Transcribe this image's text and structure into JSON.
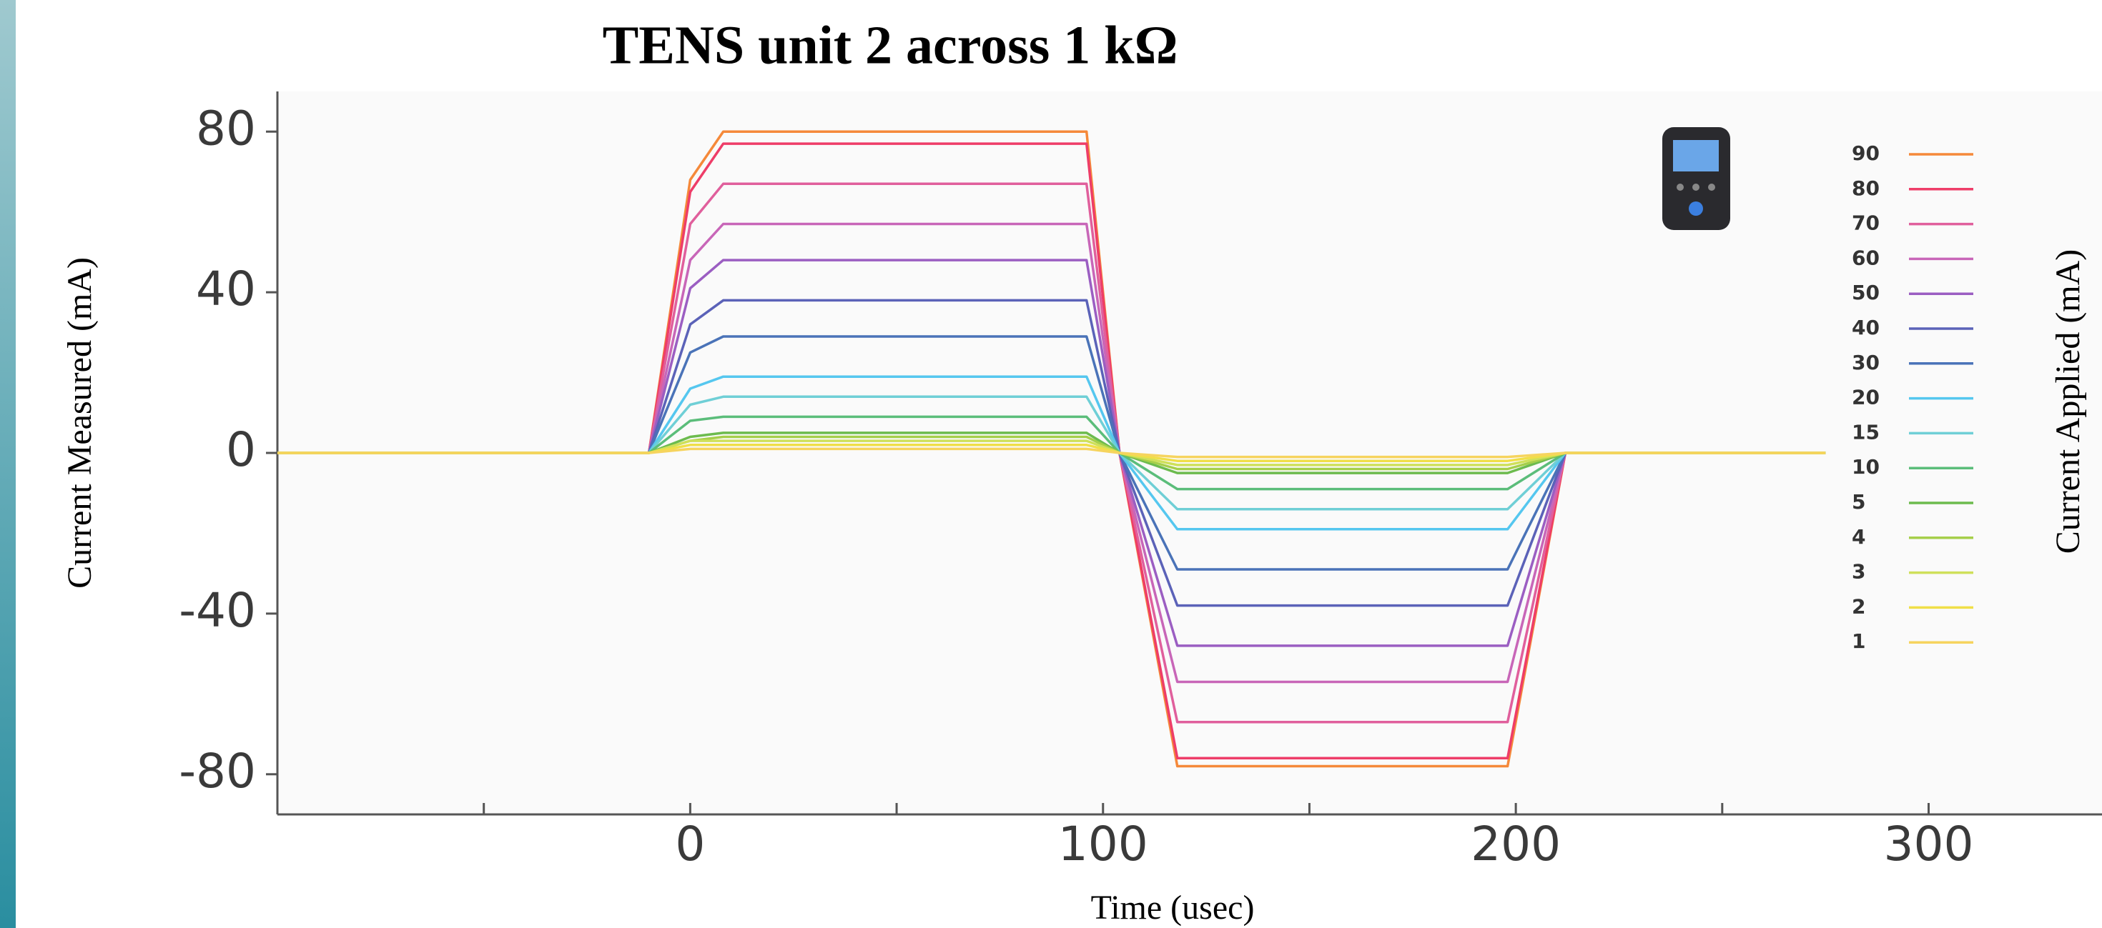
{
  "chart_data": {
    "type": "line",
    "title": "TENS unit 2 across 1 kΩ",
    "x_label": "Time (usec)",
    "y_label": "Current Measured (mA)",
    "legend_title": "Current Applied (mA)",
    "x": [
      -100,
      -10,
      0,
      8,
      96,
      104,
      118,
      198,
      212,
      275
    ],
    "xlim": [
      -100,
      342
    ],
    "xticks": [
      {
        "value": -50,
        "label": null
      },
      0,
      {
        "value": 50,
        "label": null
      },
      100,
      {
        "value": 150,
        "label": null
      },
      200,
      {
        "value": 250,
        "label": null
      },
      300
    ],
    "ylim": [
      -90,
      90
    ],
    "yticks": [
      -80,
      -40,
      0,
      40,
      80
    ],
    "grid": false,
    "legend": "right",
    "series": [
      {
        "name": "90",
        "color": "#f5893a",
        "values": [
          0,
          0,
          68,
          80,
          80,
          0,
          -78,
          -78,
          0,
          0
        ]
      },
      {
        "name": "80",
        "color": "#ee3d68",
        "values": [
          0,
          0,
          65,
          77,
          77,
          0,
          -76,
          -76,
          0,
          0
        ]
      },
      {
        "name": "70",
        "color": "#e05f9c",
        "values": [
          0,
          0,
          57,
          67,
          67,
          0,
          -67,
          -67,
          0,
          0
        ]
      },
      {
        "name": "60",
        "color": "#c866b8",
        "values": [
          0,
          0,
          48,
          57,
          57,
          0,
          -57,
          -57,
          0,
          0
        ]
      },
      {
        "name": "50",
        "color": "#9b5ec2",
        "values": [
          0,
          0,
          41,
          48,
          48,
          0,
          -48,
          -48,
          0,
          0
        ]
      },
      {
        "name": "40",
        "color": "#5b62b8",
        "values": [
          0,
          0,
          32,
          38,
          38,
          0,
          -38,
          -38,
          0,
          0
        ]
      },
      {
        "name": "30",
        "color": "#4a73b8",
        "values": [
          0,
          0,
          25,
          29,
          29,
          0,
          -29,
          -29,
          0,
          0
        ]
      },
      {
        "name": "20",
        "color": "#55c7ef",
        "values": [
          0,
          0,
          16,
          19,
          19,
          0,
          -19,
          -19,
          0,
          0
        ]
      },
      {
        "name": "15",
        "color": "#6fcfd6",
        "values": [
          0,
          0,
          12,
          14,
          14,
          0,
          -14,
          -14,
          0,
          0
        ]
      },
      {
        "name": "10",
        "color": "#5bbd7a",
        "values": [
          0,
          0,
          8,
          9,
          9,
          0,
          -9,
          -9,
          0,
          0
        ]
      },
      {
        "name": "5",
        "color": "#6cbb4e",
        "values": [
          0,
          0,
          4,
          5,
          5,
          0,
          -5,
          -5,
          0,
          0
        ]
      },
      {
        "name": "4",
        "color": "#a6cf4a",
        "values": [
          0,
          0,
          3,
          4,
          4,
          0,
          -4,
          -4,
          0,
          0
        ]
      },
      {
        "name": "3",
        "color": "#cfe05a",
        "values": [
          0,
          0,
          3,
          3,
          3,
          0,
          -3,
          -3,
          0,
          0
        ]
      },
      {
        "name": "2",
        "color": "#f0df48",
        "values": [
          0,
          0,
          2,
          2,
          2,
          0,
          -2,
          -2,
          0,
          0
        ]
      },
      {
        "name": "1",
        "color": "#f6d45e",
        "values": [
          0,
          0,
          1,
          1,
          1,
          0,
          -1,
          -1,
          0,
          0
        ]
      }
    ]
  }
}
